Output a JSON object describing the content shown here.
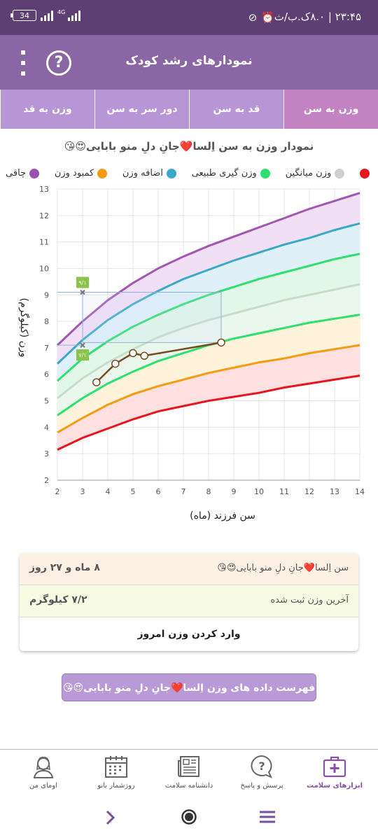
{
  "status_bar": {
    "time": "۲۳:۴۵ | ۸.۰ک.ب/ث",
    "battery": "34",
    "network": "4G"
  },
  "header": {
    "title": "نمودارهای رشد کودک",
    "help_label": "?"
  },
  "tabs": [
    {
      "label": "وزن به سن",
      "active": true
    },
    {
      "label": "قد به سن",
      "active": false
    },
    {
      "label": "دور سر به سن",
      "active": false
    },
    {
      "label": "وزن به قد",
      "active": false
    }
  ],
  "chart_title": "نمودار وزن به سن اِلسا❤️جانِ دلِ منو بابایی😍😘",
  "legend": [
    {
      "label": "چاقی",
      "color": "#9c4fb0"
    },
    {
      "label": "کمبود وزن",
      "color": "#f39c12"
    },
    {
      "label": "اضافه وزن",
      "color": "#3aa9c9"
    },
    {
      "label": "وزن گیری طبیعی",
      "color": "#2ee06e"
    },
    {
      "label": "وزن میانگین",
      "color": "#cfcfcf"
    },
    {
      "label": "",
      "color": "#e8141c"
    }
  ],
  "chart_data": {
    "type": "line",
    "xlabel": "سن فرزند (ماه)",
    "ylabel": "وزن (کیلوگرم)",
    "xlim": [
      2,
      14
    ],
    "ylim": [
      2,
      13
    ],
    "x_ticks": [
      2,
      3,
      4,
      5,
      6,
      7,
      8,
      9,
      10,
      11,
      12,
      13,
      14
    ],
    "y_ticks": [
      2,
      3,
      4,
      5,
      6,
      7,
      8,
      9,
      10,
      11,
      12,
      13
    ],
    "grid": true,
    "x": [
      2,
      3,
      4,
      5,
      6,
      7,
      8,
      9,
      10,
      11,
      12,
      13,
      14
    ],
    "series": [
      {
        "name": "چاقی",
        "color": "#a256b3",
        "values": [
          7.1,
          8.0,
          8.8,
          9.45,
          10.0,
          10.45,
          10.85,
          11.2,
          11.55,
          11.9,
          12.25,
          12.55,
          12.85
        ]
      },
      {
        "name": "اضافه وزن",
        "color": "#3aa9c9",
        "values": [
          6.4,
          7.3,
          8.05,
          8.65,
          9.15,
          9.6,
          9.95,
          10.3,
          10.6,
          10.9,
          11.15,
          11.45,
          11.7
        ]
      },
      {
        "name": "وزن گیری طبیعی",
        "color": "#2ee06e",
        "values": [
          5.75,
          6.6,
          7.25,
          7.8,
          8.25,
          8.65,
          9.0,
          9.3,
          9.6,
          9.85,
          10.1,
          10.35,
          10.55
        ]
      },
      {
        "name": "وزن میانگین",
        "color": "#c8dcc8",
        "values": [
          5.1,
          5.85,
          6.45,
          6.95,
          7.4,
          7.75,
          8.05,
          8.3,
          8.55,
          8.8,
          9.0,
          9.2,
          9.4
        ]
      },
      {
        "name": "",
        "color": "#2ee06e",
        "values": [
          4.45,
          5.1,
          5.65,
          6.1,
          6.5,
          6.8,
          7.1,
          7.35,
          7.55,
          7.75,
          7.95,
          8.1,
          8.25
        ]
      },
      {
        "name": "کمبود وزن",
        "color": "#f39c12",
        "values": [
          3.8,
          4.35,
          4.85,
          5.25,
          5.55,
          5.8,
          6.05,
          6.25,
          6.45,
          6.6,
          6.8,
          6.95,
          7.1
        ]
      },
      {
        "name": "",
        "color": "#e8141c",
        "values": [
          3.15,
          3.6,
          3.95,
          4.3,
          4.6,
          4.8,
          5.0,
          5.15,
          5.3,
          5.5,
          5.65,
          5.8,
          5.95
        ]
      }
    ],
    "child_series": {
      "x": [
        3.55,
        4.3,
        5.0,
        5.45,
        8.5
      ],
      "values": [
        5.7,
        6.4,
        6.8,
        6.7,
        7.2
      ],
      "color": "#7a4a1e"
    },
    "marker_high": {
      "x": 3,
      "value": 9.1,
      "label": "۹/۱"
    },
    "marker_low": {
      "x": 3,
      "value": 7.1,
      "label": "۷/۱"
    },
    "band_colors": [
      "#f1dff5",
      "#dff0f8",
      "#e1f7e8",
      "#eaf7ec",
      "#fff3dc",
      "#ffe0e0"
    ]
  },
  "info_card": {
    "row1_left": "۸ ماه و ۲۷ روز",
    "row1_right": "سن اِلسا❤️جانِ دلِ منو بابایی😍😘",
    "row2_left": "۷/۲ کیلوگرم",
    "row2_right": "آخرین وزن ثبت شده",
    "action": "وارد کردن وزن امروز"
  },
  "list_button": "فهرست داده های وزن اِلسا❤️جانِ دلِ منو بابایی😍😘",
  "bottom_nav": [
    {
      "label": "ابزارهای سلامت",
      "icon": "medical-kit-icon",
      "active": true
    },
    {
      "label": "پرسش و پاسخ",
      "icon": "question-bubble-icon",
      "active": false
    },
    {
      "label": "دانشنامه سلامت",
      "icon": "newspaper-icon",
      "active": false
    },
    {
      "label": "روزشمار بانو",
      "icon": "calendar-icon",
      "active": false
    },
    {
      "label": "اومای من",
      "icon": "profile-icon",
      "active": false
    }
  ]
}
